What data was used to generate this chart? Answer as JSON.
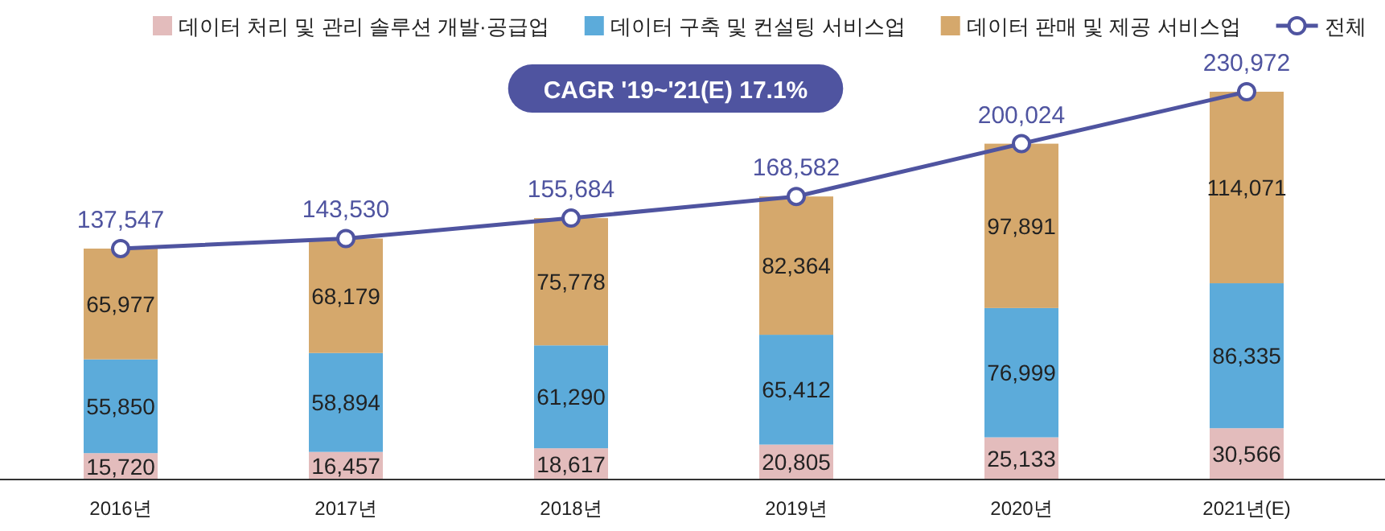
{
  "chart_data": {
    "type": "bar",
    "stacked": true,
    "legend": "top",
    "marker": "circle",
    "categories": [
      "2016년",
      "2017년",
      "2018년",
      "2019년",
      "2020년",
      "2021년(E)"
    ],
    "series": [
      {
        "name": "데이터 처리 및 관리 솔루션 개발·공급업",
        "color": "#e3bcbc",
        "values": [
          15720,
          16457,
          18617,
          20805,
          25133,
          30566
        ],
        "value_labels": [
          "15,720",
          "16,457",
          "18,617",
          "20,805",
          "25,133",
          "30,566"
        ]
      },
      {
        "name": "데이터 구축 및 컨설팅 서비스업",
        "color": "#5cabda",
        "values": [
          55850,
          58894,
          61290,
          65412,
          76999,
          86335
        ],
        "value_labels": [
          "55,850",
          "58,894",
          "61,290",
          "65,412",
          "76,999",
          "86,335"
        ]
      },
      {
        "name": "데이터 판매 및 제공 서비스업",
        "color": "#d5a86c",
        "values": [
          65977,
          68179,
          75778,
          82364,
          97891,
          114071
        ],
        "value_labels": [
          "65,977",
          "68,179",
          "75,778",
          "82,364",
          "97,891",
          "114,071"
        ]
      },
      {
        "name": "전체",
        "type": "line",
        "color": "#4f54a0",
        "values": [
          137547,
          143530,
          155684,
          168582,
          200024,
          230972
        ],
        "value_labels": [
          "137,547",
          "143,530",
          "155,684",
          "168,582",
          "200,024",
          "230,972"
        ]
      }
    ],
    "annotations": [
      "CAGR '19~'21(E) 17.1%"
    ]
  }
}
